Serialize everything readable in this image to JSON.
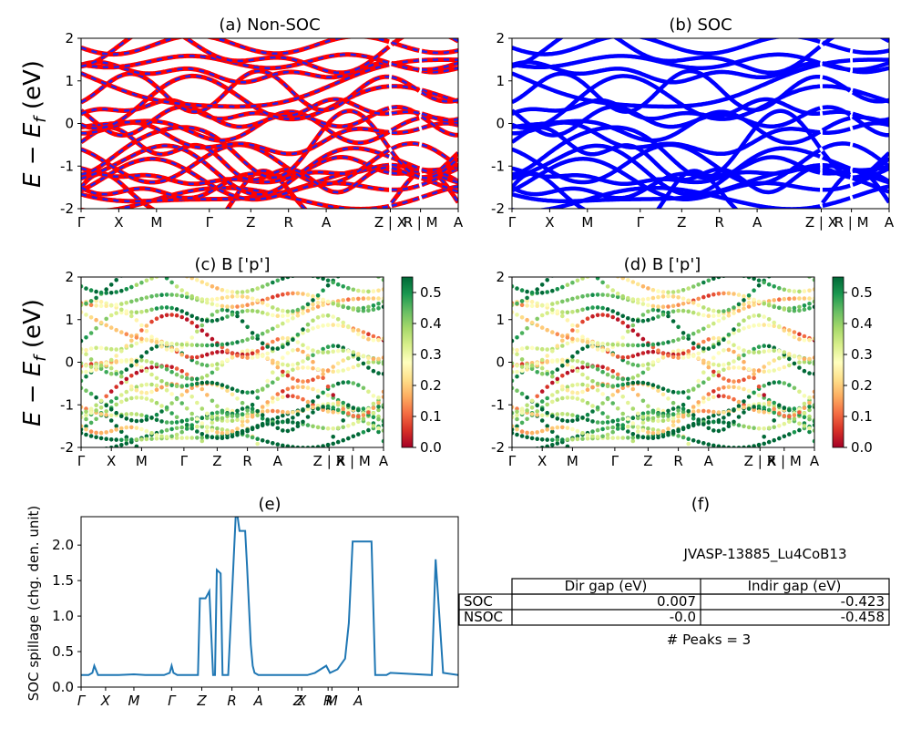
{
  "panels": {
    "a": {
      "title": "(a) Non-SOC"
    },
    "b": {
      "title": "(b) SOC"
    },
    "c": {
      "title": "(c)  B ['p']"
    },
    "d": {
      "title": "(d) B ['p']"
    },
    "e": {
      "title": "(e)"
    },
    "f": {
      "title": "(f)"
    }
  },
  "band_ylabel": "E − E_f (eV)",
  "spillage_ylabel": "SOC spillage (chg. den. unit)",
  "colors": {
    "nonsoc_red": "#ff0000",
    "nonsoc_blue": "#2222ee",
    "soc_blue": "#0000ff",
    "spillage_line": "#1f77b4",
    "colormap": "RdYlGn",
    "cmap_stops": [
      "#a50026",
      "#d73027",
      "#f46d43",
      "#fdae61",
      "#fee08b",
      "#ffffbf",
      "#d9ef8b",
      "#a6d96a",
      "#66bd63",
      "#1a9850",
      "#006837"
    ]
  },
  "kpath": {
    "labels": [
      "Γ",
      "X",
      "M",
      "Γ",
      "Z",
      "R",
      "A",
      "Z | X",
      "R | M",
      "A"
    ],
    "positions": [
      0.0,
      0.1,
      0.2,
      0.34,
      0.45,
      0.55,
      0.65,
      0.82,
      0.9,
      1.0
    ]
  },
  "kpath_cd": {
    "labels": [
      "Γ",
      "X",
      "M",
      "Γ",
      "Z",
      "R",
      "A",
      "Z | X",
      "R | M",
      "A"
    ],
    "positions": [
      0.0,
      0.1,
      0.2,
      0.34,
      0.45,
      0.55,
      0.65,
      0.82,
      0.9,
      1.0
    ]
  },
  "colorbar_ticks": [
    "0.0",
    "0.1",
    "0.2",
    "0.3",
    "0.4",
    "0.5"
  ],
  "spillage_xticks": {
    "labels": [
      "Γ",
      "X",
      "M",
      "Γ",
      "Z",
      "R",
      "A",
      "Z",
      "X",
      "R",
      "M",
      "A"
    ],
    "positions": [
      0.0,
      0.065,
      0.14,
      0.24,
      0.32,
      0.4,
      0.47,
      0.575,
      0.585,
      0.655,
      0.665,
      0.735
    ]
  },
  "table": {
    "heading": "JVASP-13885_Lu4CoB13",
    "columns": [
      "Dir gap (eV)",
      "Indir gap (eV)"
    ],
    "rows": [
      {
        "label": "SOC",
        "dir": "0.007",
        "indir": "-0.423"
      },
      {
        "label": "NSOC",
        "dir": "-0.0",
        "indir": "-0.458"
      }
    ],
    "peaks": "# Peaks = 3"
  },
  "chart_data": [
    {
      "type": "line",
      "title": "(a) Non-SOC",
      "ylabel": "E − E_f (eV)",
      "ylim": [
        -2,
        2
      ],
      "yticks": [
        -2,
        -1,
        0,
        1,
        2
      ],
      "xticks": [
        "Γ",
        "X",
        "M",
        "Γ",
        "Z",
        "R",
        "A",
        "Z | X",
        "R | M",
        "A"
      ]
    },
    {
      "type": "line",
      "title": "(b) SOC",
      "ylim": [
        -2,
        2
      ],
      "yticks": [
        -2,
        -1,
        0,
        1,
        2
      ],
      "xticks": [
        "Γ",
        "X",
        "M",
        "Γ",
        "Z",
        "R",
        "A",
        "Z | X",
        "R | M",
        "A"
      ]
    },
    {
      "type": "scatter",
      "title": "(c)  B ['p']",
      "ylabel": "E − E_f (eV)",
      "ylim": [
        -2,
        2
      ],
      "colorbar_range": [
        0.0,
        0.55
      ]
    },
    {
      "type": "scatter",
      "title": "(d) B ['p']",
      "ylim": [
        -2,
        2
      ],
      "colorbar_range": [
        0.0,
        0.55
      ]
    },
    {
      "type": "line",
      "title": "(e)",
      "ylabel": "SOC spillage (chg. den. unit)",
      "ylim": [
        0,
        2.4
      ],
      "yticks": [
        0.0,
        0.5,
        1.0,
        1.5,
        2.0
      ],
      "x": [
        0.0,
        0.02,
        0.03,
        0.035,
        0.045,
        0.06,
        0.1,
        0.14,
        0.17,
        0.2,
        0.22,
        0.235,
        0.24,
        0.245,
        0.255,
        0.3,
        0.31,
        0.315,
        0.33,
        0.335,
        0.34,
        0.35,
        0.355,
        0.36,
        0.37,
        0.375,
        0.38,
        0.39,
        0.41,
        0.415,
        0.42,
        0.43,
        0.435,
        0.44,
        0.45,
        0.455,
        0.46,
        0.47,
        0.48,
        0.55,
        0.6,
        0.62,
        0.65,
        0.66,
        0.68,
        0.7,
        0.71,
        0.72,
        0.77,
        0.78,
        0.81,
        0.82,
        0.93,
        0.94,
        0.96,
        1.0
      ],
      "y": [
        0.17,
        0.17,
        0.2,
        0.3,
        0.17,
        0.17,
        0.17,
        0.18,
        0.17,
        0.17,
        0.17,
        0.2,
        0.3,
        0.2,
        0.17,
        0.17,
        0.17,
        1.25,
        1.25,
        1.3,
        1.35,
        0.17,
        0.17,
        1.65,
        1.6,
        0.17,
        0.17,
        0.17,
        2.4,
        2.4,
        2.2,
        2.2,
        2.2,
        1.7,
        0.6,
        0.3,
        0.2,
        0.17,
        0.17,
        0.17,
        0.17,
        0.2,
        0.3,
        0.2,
        0.25,
        0.4,
        0.9,
        2.05,
        2.05,
        0.17,
        0.17,
        0.2,
        0.17,
        1.8,
        0.2,
        0.17
      ]
    }
  ]
}
